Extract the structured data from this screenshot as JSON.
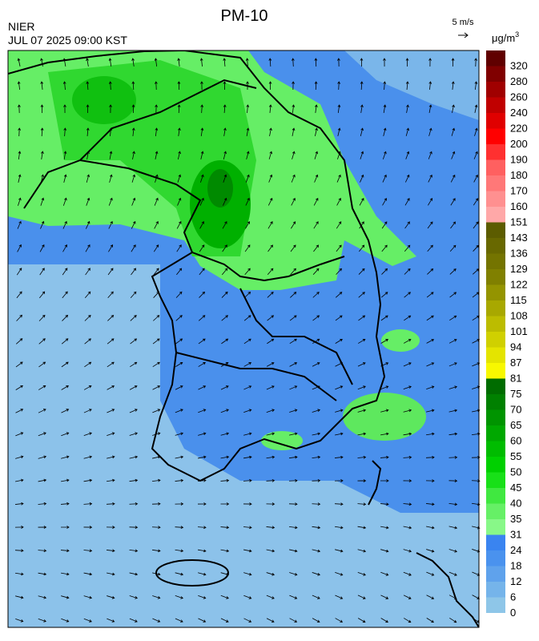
{
  "header": {
    "title": "PM-10",
    "source": "NIER",
    "datetime": "JUL 07 2025 09:00 KST",
    "wind_scale": "5 m/s"
  },
  "colorbar": {
    "unit": "μg/m",
    "unit_sup": "3",
    "ticks": [
      0,
      6,
      12,
      18,
      24,
      31,
      35,
      40,
      45,
      50,
      55,
      60,
      65,
      70,
      75,
      81,
      87,
      94,
      101,
      108,
      115,
      122,
      129,
      136,
      143,
      151,
      160,
      170,
      180,
      190,
      200,
      220,
      240,
      260,
      280,
      320
    ],
    "colors": [
      "#8ec6e8",
      "#75b4ea",
      "#5fa2ec",
      "#4a92ee",
      "#3a84f0",
      "#88f888",
      "#66f066",
      "#40e840",
      "#18e018",
      "#00d000",
      "#00bc00",
      "#00a800",
      "#009400",
      "#008000",
      "#006c00",
      "#f8f800",
      "#e4e400",
      "#d0d000",
      "#bcbc00",
      "#a8a800",
      "#949400",
      "#808000",
      "#747400",
      "#686800",
      "#5c5c00",
      "#ffa8a8",
      "#ff9090",
      "#ff7878",
      "#ff6060",
      "#ff3030",
      "#ff0000",
      "#e00000",
      "#c00000",
      "#a00000",
      "#800000",
      "#600000"
    ]
  }
}
